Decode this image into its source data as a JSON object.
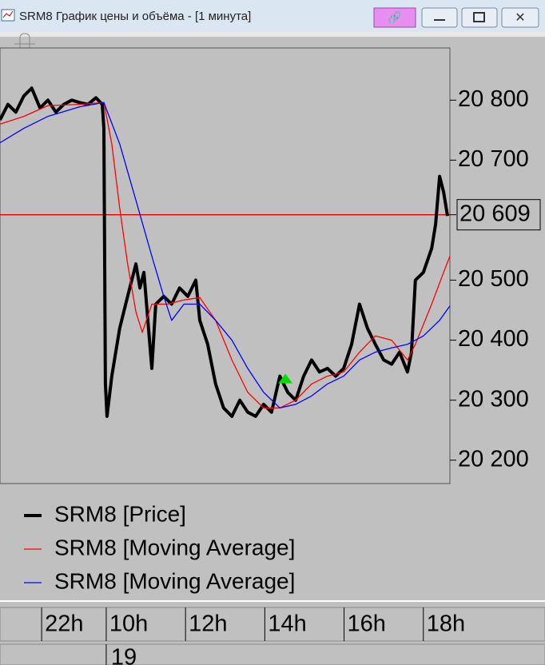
{
  "window": {
    "title": "SRM8 График цены и объёма - [1 минута]"
  },
  "chart_data": {
    "type": "line",
    "xlim": [
      7.32,
      18.67
    ],
    "ylim": [
      20161,
      20887
    ],
    "xticks": [
      {
        "value": 8.37,
        "label": "22h"
      },
      {
        "value": 10,
        "label": "10h"
      },
      {
        "value": 12,
        "label": "12h"
      },
      {
        "value": 14,
        "label": "14h"
      },
      {
        "value": 16,
        "label": "16h"
      },
      {
        "value": 18,
        "label": "18h"
      }
    ],
    "date_label": {
      "value": 10,
      "label": "19"
    },
    "yticks": [
      {
        "value": 20200,
        "label": "20 200"
      },
      {
        "value": 20300,
        "label": "20 300"
      },
      {
        "value": 20400,
        "label": "20 400"
      },
      {
        "value": 20500,
        "label": "20 500"
      },
      {
        "value": 20700,
        "label": "20 700"
      },
      {
        "value": 20800,
        "label": "20 800"
      }
    ],
    "current_price": {
      "value": 20609,
      "label": "20 609",
      "color": "#e00000"
    },
    "series": [
      {
        "name": "SRM8 [Price]",
        "color": "#000000",
        "width": 4,
        "x": [
          7.32,
          7.52,
          7.72,
          7.92,
          8.12,
          8.33,
          8.53,
          8.73,
          8.93,
          9.13,
          9.33,
          9.54,
          9.74,
          9.9,
          9.94,
          9.98,
          10.02,
          10.14,
          10.34,
          10.54,
          10.75,
          10.85,
          10.95,
          11.15,
          11.25,
          11.45,
          11.65,
          11.85,
          12.06,
          12.26,
          12.36,
          12.56,
          12.76,
          12.96,
          13.17,
          13.37,
          13.57,
          13.77,
          13.97,
          14.17,
          14.38,
          14.58,
          14.78,
          14.98,
          15.18,
          15.38,
          15.58,
          15.79,
          15.99,
          16.19,
          16.39,
          16.59,
          16.79,
          17.0,
          17.2,
          17.4,
          17.6,
          17.7,
          17.8,
          18.0,
          18.21,
          18.31,
          18.41,
          18.51,
          18.61
        ],
        "values": [
          20767,
          20793,
          20780,
          20807,
          20820,
          20787,
          20800,
          20780,
          20793,
          20800,
          20796,
          20793,
          20804,
          20793,
          20753,
          20327,
          20273,
          20340,
          20420,
          20473,
          20527,
          20487,
          20513,
          20353,
          20460,
          20473,
          20460,
          20487,
          20473,
          20500,
          20433,
          20393,
          20327,
          20287,
          20273,
          20300,
          20280,
          20273,
          20293,
          20280,
          20340,
          20313,
          20300,
          20340,
          20367,
          20347,
          20353,
          20340,
          20353,
          20393,
          20460,
          20420,
          20393,
          20367,
          20360,
          20380,
          20347,
          20380,
          20500,
          20513,
          20553,
          20593,
          20673,
          20647,
          20607
        ]
      },
      {
        "name": "SRM8 [Moving Average]",
        "color": "#ff0000",
        "width": 1.3,
        "x": [
          7.32,
          7.92,
          8.53,
          9.33,
          9.94,
          10.14,
          10.34,
          10.54,
          10.75,
          10.91,
          11.15,
          11.55,
          11.96,
          12.36,
          12.76,
          13.17,
          13.57,
          13.97,
          14.38,
          14.78,
          15.18,
          15.58,
          15.99,
          16.39,
          16.79,
          17.2,
          17.6,
          17.8,
          18.21,
          18.51,
          18.67
        ],
        "values": [
          20760,
          20773,
          20791,
          20793,
          20796,
          20727,
          20620,
          20527,
          20447,
          20413,
          20460,
          20460,
          20467,
          20471,
          20433,
          20367,
          20313,
          20287,
          20287,
          20300,
          20327,
          20340,
          20347,
          20380,
          20407,
          20400,
          20367,
          20393,
          20460,
          20513,
          20540
        ]
      },
      {
        "name": "SRM8 [Moving Average]",
        "color": "#0000ff",
        "width": 1.3,
        "x": [
          7.32,
          7.92,
          8.53,
          9.33,
          9.94,
          10.34,
          10.75,
          11.15,
          11.45,
          11.65,
          11.96,
          12.36,
          12.76,
          13.17,
          13.57,
          13.97,
          14.38,
          14.78,
          15.18,
          15.58,
          15.99,
          16.39,
          16.79,
          17.2,
          17.6,
          18.0,
          18.41,
          18.67
        ],
        "values": [
          20729,
          20753,
          20773,
          20789,
          20796,
          20727,
          20633,
          20540,
          20473,
          20433,
          20460,
          20460,
          20433,
          20400,
          20353,
          20313,
          20287,
          20293,
          20307,
          20327,
          20340,
          20367,
          20380,
          20387,
          20393,
          20407,
          20433,
          20457
        ]
      }
    ],
    "markers": [
      {
        "x": 14.52,
        "y": 20336,
        "color": "#00e000"
      }
    ]
  }
}
